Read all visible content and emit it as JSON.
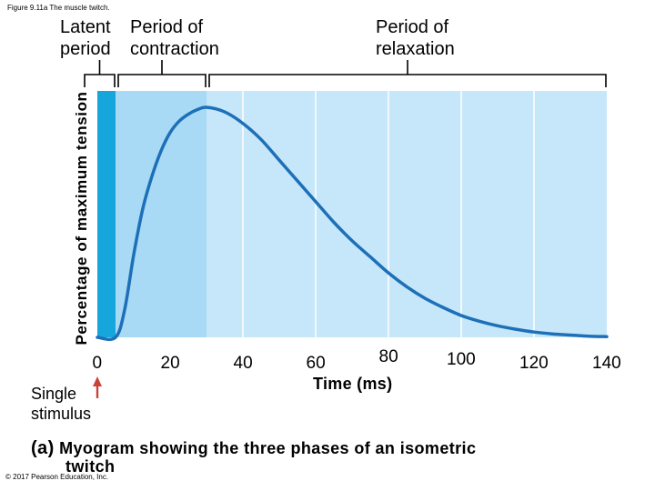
{
  "figure_label": "Figure 9.11a The muscle twitch.",
  "phases": {
    "latent": [
      "Latent",
      "period"
    ],
    "contraction": [
      "Period of",
      "contraction"
    ],
    "relaxation": [
      "Period of",
      "relaxation"
    ]
  },
  "colors": {
    "latent": "#17a6dc",
    "contraction_dark": "#8fcdf1",
    "contraction_light": "#a8daf6",
    "relaxation": "#c6e7fa",
    "curve": "#1d70b8",
    "arrow": "#c8433a"
  },
  "stimulus_label": [
    "Single",
    "stimulus"
  ],
  "caption": {
    "label": "(a)",
    "text_line1": "Myogram showing the three phases of an isometric",
    "text_line2": "twitch"
  },
  "copyright": "© 2017 Pearson Education, Inc.",
  "chart_data": {
    "type": "line",
    "title": "Myogram showing the three phases of an isometric twitch",
    "xlabel": "Time (ms)",
    "ylabel": "Percentage of maximum tension",
    "xlim": [
      0,
      140
    ],
    "ylim": [
      0,
      100
    ],
    "x_ticks": [
      0,
      20,
      40,
      60,
      80,
      100,
      120,
      140
    ],
    "x_tick_labels": [
      "0",
      "20",
      "40",
      "60",
      "80",
      "100",
      "120",
      "140"
    ],
    "phase_boundaries_ms": {
      "latent_end": 5,
      "contraction_end": 30,
      "relaxation_end": 140
    },
    "series": [
      {
        "name": "Tension",
        "x": [
          0,
          5,
          7.5,
          10,
          12.5,
          15,
          17.5,
          20,
          22.5,
          25,
          27.5,
          30,
          35,
          40,
          45,
          50,
          55,
          60,
          65,
          70,
          75,
          80,
          85,
          90,
          95,
          100,
          105,
          110,
          115,
          120,
          125,
          130,
          135,
          140
        ],
        "y": [
          0,
          0,
          12,
          36,
          56,
          70,
          81,
          89,
          94,
          97,
          99,
          100,
          98,
          93,
          86,
          77,
          68,
          59,
          50,
          42,
          35,
          28,
          22,
          17,
          13,
          9.5,
          7,
          5,
          3.5,
          2.3,
          1.5,
          1,
          0.5,
          0.3
        ]
      }
    ]
  }
}
